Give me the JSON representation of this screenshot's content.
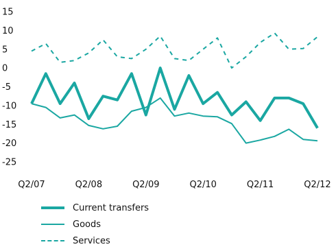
{
  "chart_data": {
    "type": "line",
    "x": [
      "Q2/07",
      "Q3/07",
      "Q4/07",
      "Q1/08",
      "Q2/08",
      "Q3/08",
      "Q4/08",
      "Q1/09",
      "Q2/09",
      "Q3/09",
      "Q4/09",
      "Q1/10",
      "Q2/10",
      "Q3/10",
      "Q4/10",
      "Q1/11",
      "Q2/11",
      "Q3/11",
      "Q4/11",
      "Q1/12",
      "Q2/12"
    ],
    "x_tick_labels": [
      "Q2/07",
      "Q2/08",
      "Q2/09",
      "Q2/10",
      "Q2/11",
      "Q2/12"
    ],
    "ylim": [
      -25,
      15
    ],
    "y_ticks": [
      "15",
      "10",
      "5",
      "0",
      "-5",
      "-10",
      "-15",
      "-20",
      "-25"
    ],
    "grid": false,
    "legend_position": "bottom-left",
    "colors": {
      "series": "#1aa7a2"
    },
    "series": [
      {
        "name": "Current transfers",
        "style": "thick",
        "values": [
          -9.5,
          -1.5,
          -9.5,
          -4,
          -13.5,
          -7.5,
          -8.5,
          -1.5,
          -12.5,
          0,
          -11,
          -2,
          -9.5,
          -6.5,
          -12.5,
          -9,
          -14,
          -8,
          -8,
          -9.5,
          -16
        ]
      },
      {
        "name": "Goods",
        "style": "thin",
        "values": [
          -9.5,
          -10.5,
          -13.3,
          -12.5,
          -15.3,
          -16.2,
          -15.5,
          -11.5,
          -10.5,
          -8,
          -12.8,
          -12,
          -12.8,
          -13,
          -14.8,
          -20,
          -19.2,
          -18.2,
          -16.3,
          -19,
          -19.4
        ]
      },
      {
        "name": "Services",
        "style": "dashed",
        "values": [
          4.5,
          6.5,
          1.5,
          2,
          4,
          7.5,
          3,
          2.5,
          5,
          8.5,
          2.5,
          2,
          5,
          8,
          0,
          3,
          6.8,
          9.3,
          5,
          5.2,
          8.3
        ]
      }
    ]
  }
}
